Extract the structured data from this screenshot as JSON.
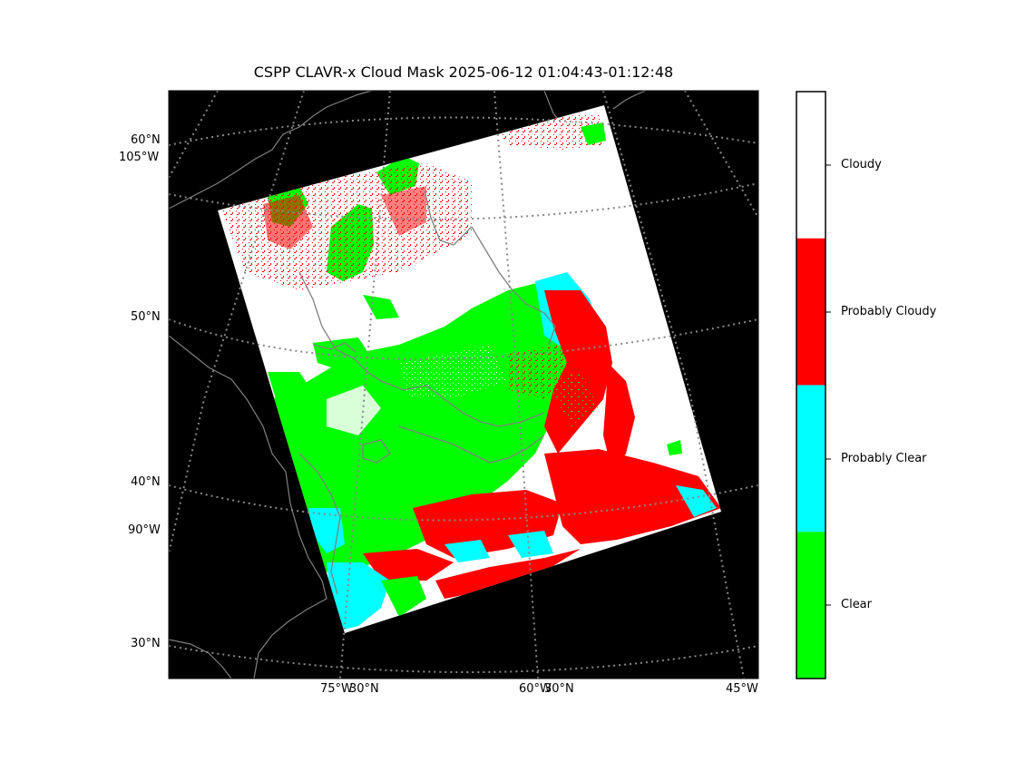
{
  "title": "CSPP CLAVR-x Cloud Mask 2025-06-12 01:04:43-01:12:48",
  "map": {
    "background_color": "#000000",
    "grid_color": "#888888",
    "coast_color": "#808080",
    "lat_labels": [
      "60°N",
      "50°N",
      "40°N",
      "30°N"
    ],
    "lon_labels_left": [
      "105°W",
      "90°W"
    ],
    "bottom_labels": [
      "75°W",
      "30°N",
      "60°W",
      "30°N",
      "45°W"
    ]
  },
  "colorbar": {
    "categories": [
      {
        "label": "Cloudy",
        "color": "#ffffff"
      },
      {
        "label": "Probably Cloudy",
        "color": "#ff0000"
      },
      {
        "label": "Probably Clear",
        "color": "#00ffff"
      },
      {
        "label": "Clear",
        "color": "#00ff00"
      }
    ]
  }
}
